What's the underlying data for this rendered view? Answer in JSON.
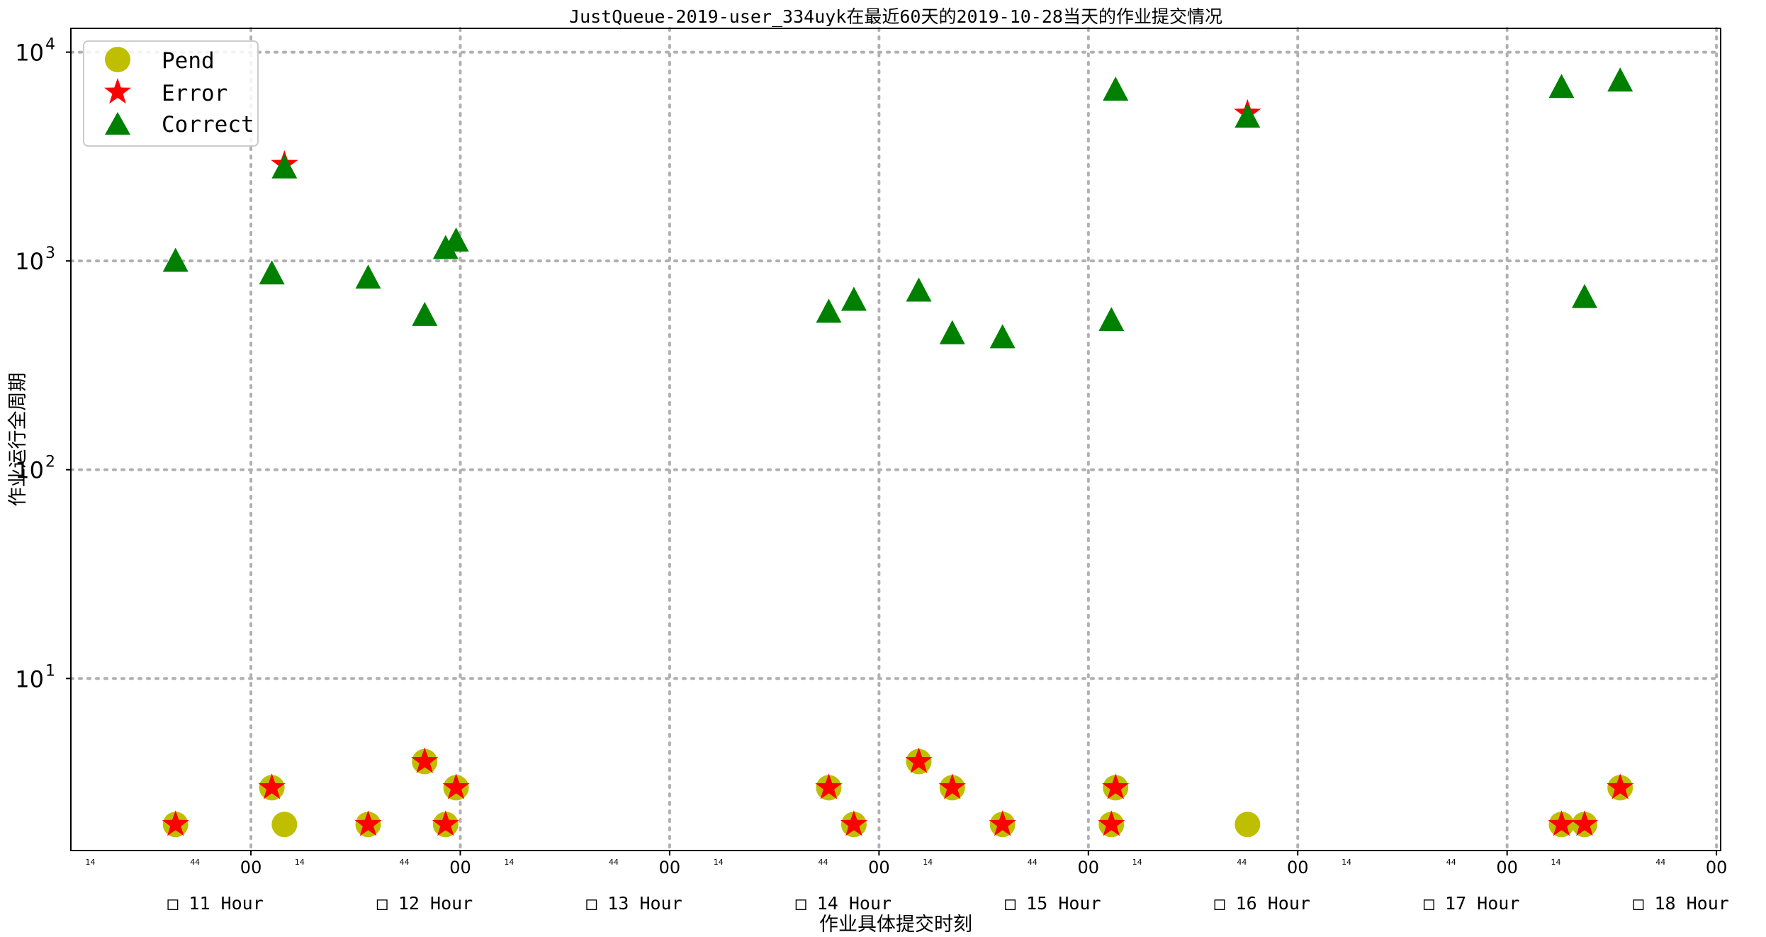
{
  "chart_data": {
    "type": "scatter",
    "title": "JustQueue-2019-user_334uyk在最近60天的2019-10-28当天的作业提交情况",
    "xlabel": "作业具体提交时刻",
    "ylabel": "作业运行全周期",
    "yscale": "log",
    "ylim": [
      1.5,
      13000
    ],
    "xlim": [
      10.14,
      18.02
    ],
    "grid": true,
    "legend_position": "top-left",
    "y_ticks": [
      {
        "base": "10",
        "exp": "1",
        "value": 10
      },
      {
        "base": "10",
        "exp": "2",
        "value": 100
      },
      {
        "base": "10",
        "exp": "3",
        "value": 1000
      },
      {
        "base": "10",
        "exp": "4",
        "value": 10000
      }
    ],
    "hour_ticks": [
      {
        "value": 11,
        "label": "00",
        "hour_label": "□ 11 Hour"
      },
      {
        "value": 12,
        "label": "00",
        "hour_label": "□ 12 Hour"
      },
      {
        "value": 13,
        "label": "00",
        "hour_label": "□ 13 Hour"
      },
      {
        "value": 14,
        "label": "00",
        "hour_label": "□ 14 Hour"
      },
      {
        "value": 15,
        "label": "00",
        "hour_label": "□ 15 Hour"
      },
      {
        "value": 16,
        "label": "00",
        "hour_label": "□ 16 Hour"
      },
      {
        "value": 17,
        "label": "00",
        "hour_label": "□ 17 Hour"
      },
      {
        "value": 18,
        "label": "00",
        "hour_label": "□ 18 Hour"
      }
    ],
    "minor_ticks": [
      {
        "value": 10.233,
        "label": "14"
      },
      {
        "value": 10.733,
        "label": "44"
      },
      {
        "value": 11.233,
        "label": "14"
      },
      {
        "value": 11.733,
        "label": "44"
      },
      {
        "value": 12.233,
        "label": "14"
      },
      {
        "value": 12.733,
        "label": "44"
      },
      {
        "value": 13.233,
        "label": "14"
      },
      {
        "value": 13.733,
        "label": "44"
      },
      {
        "value": 14.233,
        "label": "14"
      },
      {
        "value": 14.733,
        "label": "44"
      },
      {
        "value": 15.233,
        "label": "14"
      },
      {
        "value": 15.733,
        "label": "44"
      },
      {
        "value": 16.233,
        "label": "14"
      },
      {
        "value": 16.733,
        "label": "44"
      },
      {
        "value": 17.233,
        "label": "14"
      },
      {
        "value": 17.733,
        "label": "44"
      }
    ],
    "series": [
      {
        "name": "Pend",
        "marker": "circle",
        "color": "#bfbf00",
        "points": [
          {
            "x": 10.64,
            "y": 2
          },
          {
            "x": 11.1,
            "y": 3
          },
          {
            "x": 11.16,
            "y": 2
          },
          {
            "x": 11.56,
            "y": 2
          },
          {
            "x": 11.83,
            "y": 4
          },
          {
            "x": 11.93,
            "y": 2
          },
          {
            "x": 11.98,
            "y": 3
          },
          {
            "x": 13.76,
            "y": 3
          },
          {
            "x": 13.88,
            "y": 2
          },
          {
            "x": 14.19,
            "y": 4
          },
          {
            "x": 14.35,
            "y": 3
          },
          {
            "x": 14.59,
            "y": 2
          },
          {
            "x": 15.11,
            "y": 2
          },
          {
            "x": 15.13,
            "y": 3
          },
          {
            "x": 15.76,
            "y": 2
          },
          {
            "x": 17.26,
            "y": 2
          },
          {
            "x": 17.37,
            "y": 2
          },
          {
            "x": 17.54,
            "y": 3
          }
        ]
      },
      {
        "name": "Error",
        "marker": "star",
        "color": "#ff0000",
        "points": [
          {
            "x": 10.64,
            "y": 2
          },
          {
            "x": 11.1,
            "y": 3
          },
          {
            "x": 11.56,
            "y": 2
          },
          {
            "x": 11.83,
            "y": 4
          },
          {
            "x": 11.93,
            "y": 2
          },
          {
            "x": 11.98,
            "y": 3
          },
          {
            "x": 13.76,
            "y": 3
          },
          {
            "x": 13.88,
            "y": 2
          },
          {
            "x": 14.19,
            "y": 4
          },
          {
            "x": 14.35,
            "y": 3
          },
          {
            "x": 14.59,
            "y": 2
          },
          {
            "x": 15.11,
            "y": 2
          },
          {
            "x": 15.13,
            "y": 3
          },
          {
            "x": 17.26,
            "y": 2
          },
          {
            "x": 17.37,
            "y": 2
          },
          {
            "x": 17.54,
            "y": 3
          },
          {
            "x": 11.16,
            "y": 2900
          },
          {
            "x": 15.76,
            "y": 5100
          }
        ]
      },
      {
        "name": "Correct",
        "marker": "triangle",
        "color": "#008000",
        "points": [
          {
            "x": 10.64,
            "y": 1000
          },
          {
            "x": 11.1,
            "y": 870
          },
          {
            "x": 11.16,
            "y": 2800
          },
          {
            "x": 11.56,
            "y": 830
          },
          {
            "x": 11.83,
            "y": 550
          },
          {
            "x": 11.93,
            "y": 1150
          },
          {
            "x": 11.98,
            "y": 1250
          },
          {
            "x": 13.76,
            "y": 570
          },
          {
            "x": 13.88,
            "y": 650
          },
          {
            "x": 14.19,
            "y": 720
          },
          {
            "x": 14.35,
            "y": 450
          },
          {
            "x": 14.59,
            "y": 430
          },
          {
            "x": 15.11,
            "y": 520
          },
          {
            "x": 15.13,
            "y": 6600
          },
          {
            "x": 15.76,
            "y": 4900
          },
          {
            "x": 17.26,
            "y": 6800
          },
          {
            "x": 17.37,
            "y": 670
          },
          {
            "x": 17.54,
            "y": 7300
          }
        ]
      }
    ]
  }
}
